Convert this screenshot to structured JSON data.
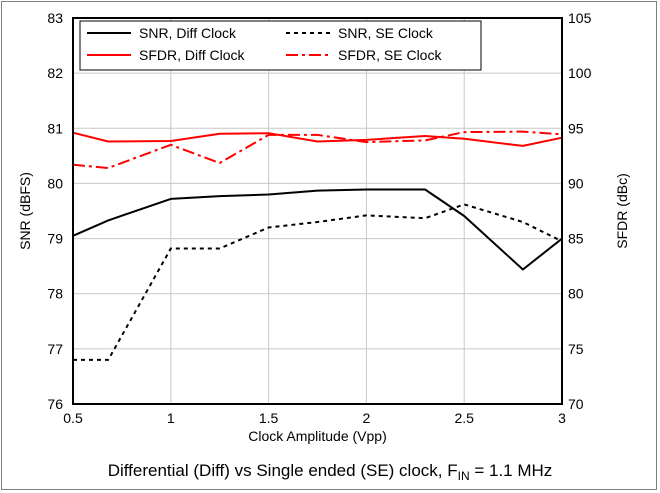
{
  "chart_data": {
    "type": "line",
    "title": "",
    "caption": {
      "main": "Differential (Diff) vs Single ended (SE) clock, F",
      "subscript": "IN",
      "suffix": " = 1.1 MHz"
    },
    "xlabel": "Clock Amplitude (Vpp)",
    "ylabel_left": "SNR (dBFS)",
    "ylabel_right": "SFDR (dBc)",
    "xlim": [
      0.5,
      3
    ],
    "ylim_left": [
      76,
      83
    ],
    "ylim_right": [
      70,
      105
    ],
    "x_ticks": [
      "0.5",
      "1",
      "1.5",
      "2",
      "2.5",
      "3"
    ],
    "x_tick_values": [
      0.5,
      1,
      1.5,
      2,
      2.5,
      3
    ],
    "y_left_ticks": [
      "76",
      "77",
      "78",
      "79",
      "80",
      "81",
      "82",
      "83"
    ],
    "y_left_tick_values": [
      76,
      77,
      78,
      79,
      80,
      81,
      82,
      83
    ],
    "y_right_ticks": [
      "70",
      "75",
      "80",
      "85",
      "90",
      "95",
      "100",
      "105"
    ],
    "y_right_tick_values": [
      70,
      75,
      80,
      85,
      90,
      95,
      100,
      105
    ],
    "grid": true,
    "legend_position": "top-left",
    "series": [
      {
        "name": "SNR, Diff Clock",
        "axis": "left",
        "color": "#000000",
        "dash": "solid",
        "x": [
          0.5,
          0.68,
          1.0,
          1.25,
          1.5,
          1.75,
          2.0,
          2.3,
          2.5,
          2.8,
          3.0
        ],
        "y": [
          79.05,
          79.33,
          79.72,
          79.77,
          79.8,
          79.87,
          79.89,
          79.89,
          79.41,
          78.44,
          79.0
        ]
      },
      {
        "name": "SNR, SE Clock",
        "axis": "left",
        "color": "#000000",
        "dash": "dotted",
        "x": [
          0.5,
          0.68,
          1.0,
          1.25,
          1.5,
          1.75,
          2.0,
          2.3,
          2.5,
          2.8,
          3.0
        ],
        "y": [
          76.8,
          76.8,
          78.82,
          78.82,
          79.2,
          79.3,
          79.42,
          79.37,
          79.62,
          79.3,
          78.95
        ]
      },
      {
        "name": "SFDR, Diff Clock",
        "axis": "right",
        "color": "#ff0000",
        "dash": "solid",
        "x": [
          0.5,
          0.68,
          1.0,
          1.25,
          1.5,
          1.75,
          2.0,
          2.3,
          2.5,
          2.8,
          3.0
        ],
        "y": [
          94.6,
          93.8,
          93.85,
          94.5,
          94.55,
          93.8,
          93.95,
          94.3,
          94.05,
          93.4,
          94.15
        ]
      },
      {
        "name": "SFDR, SE Clock",
        "axis": "right",
        "color": "#ff0000",
        "dash": "dashdot",
        "x": [
          0.5,
          0.68,
          1.0,
          1.25,
          1.5,
          1.75,
          2.0,
          2.3,
          2.5,
          2.8,
          3.0
        ],
        "y": [
          91.7,
          91.4,
          93.5,
          91.85,
          94.4,
          94.4,
          93.75,
          93.9,
          94.65,
          94.7,
          94.45
        ]
      }
    ]
  }
}
